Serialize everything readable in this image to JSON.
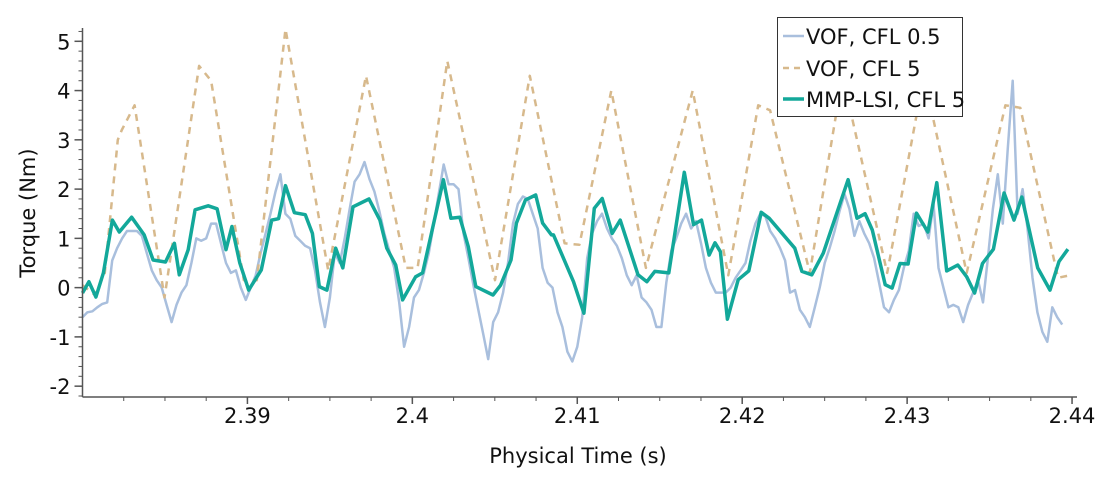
{
  "chart_data": {
    "type": "line",
    "title": "",
    "xlabel": "Physical Time (s)",
    "ylabel": "Torque (Nm)",
    "xlim": [
      2.38,
      2.4403
    ],
    "ylim": [
      -2.22,
      5.27
    ],
    "xticks": [
      2.39,
      2.4,
      2.41,
      2.42,
      2.43,
      2.44
    ],
    "xtick_labels": [
      "2.39",
      "2.4",
      "2.41",
      "2.42",
      "2.43",
      "2.44"
    ],
    "yticks": [
      5,
      4,
      3,
      2,
      1,
      0,
      -1,
      -2
    ],
    "ytick_labels": [
      "5",
      "4",
      "3",
      "2",
      "1",
      "0",
      "-1",
      "-2"
    ],
    "grid": false,
    "legend_position": "top-right",
    "series": [
      {
        "name": "VOF, CFL 0.5",
        "color": "#a9bfdd",
        "style": "solid",
        "x": [
          2.38,
          2.3803,
          2.3806,
          2.3809,
          2.3812,
          2.3815,
          2.3818,
          2.3821,
          2.3824,
          2.3827,
          2.383,
          2.3833,
          2.3836,
          2.3839,
          2.3842,
          2.3845,
          2.3848,
          2.3851,
          2.3854,
          2.3857,
          2.386,
          2.3863,
          2.3866,
          2.3869,
          2.3872,
          2.3875,
          2.3878,
          2.3881,
          2.3884,
          2.3887,
          2.389,
          2.3893,
          2.3896,
          2.3899,
          2.3902,
          2.3905,
          2.3908,
          2.3911,
          2.3914,
          2.3917,
          2.392,
          2.3923,
          2.3926,
          2.3929,
          2.3932,
          2.3935,
          2.3938,
          2.3941,
          2.3944,
          2.3947,
          2.395,
          2.3953,
          2.3956,
          2.3959,
          2.3962,
          2.3965,
          2.3968,
          2.3971,
          2.3974,
          2.3977,
          2.398,
          2.3983,
          2.3986,
          2.3989,
          2.3992,
          2.3995,
          2.3998,
          2.4001,
          2.4004,
          2.4007,
          2.401,
          2.4013,
          2.4016,
          2.4019,
          2.4022,
          2.4025,
          2.4028,
          2.4031,
          2.4034,
          2.4037,
          2.404,
          2.4043,
          2.4046,
          2.4049,
          2.4052,
          2.4055,
          2.4058,
          2.4061,
          2.4064,
          2.4067,
          2.407,
          2.4073,
          2.4076,
          2.4079,
          2.4082,
          2.4085,
          2.4088,
          2.4091,
          2.4094,
          2.4097,
          2.41,
          2.4103,
          2.4106,
          2.4109,
          2.4112,
          2.4115,
          2.4118,
          2.4121,
          2.4124,
          2.4127,
          2.413,
          2.4133,
          2.4136,
          2.4139,
          2.4142,
          2.4145,
          2.4148,
          2.4151,
          2.4154,
          2.4157,
          2.416,
          2.4163,
          2.4166,
          2.4169,
          2.4172,
          2.4175,
          2.4178,
          2.4181,
          2.4184,
          2.4187,
          2.419,
          2.4193,
          2.4196,
          2.4199,
          2.4202,
          2.4205,
          2.4208,
          2.4211,
          2.4214,
          2.4217,
          2.422,
          2.4223,
          2.4226,
          2.4229,
          2.4232,
          2.4235,
          2.4238,
          2.4241,
          2.4244,
          2.4247,
          2.425,
          2.4253,
          2.4256,
          2.4259,
          2.4262,
          2.4265,
          2.4268,
          2.4271,
          2.4274,
          2.4277,
          2.428,
          2.4283,
          2.4286,
          2.4289,
          2.4292,
          2.4295,
          2.4298,
          2.4301,
          2.4304,
          2.4307,
          2.431,
          2.4313,
          2.4316,
          2.4319,
          2.4322,
          2.4325,
          2.4328,
          2.4331,
          2.4334,
          2.4337,
          2.434,
          2.4343,
          2.4346,
          2.4349,
          2.4352,
          2.4355,
          2.4358,
          2.4361,
          2.4364,
          2.4367,
          2.437,
          2.4373,
          2.4376,
          2.4379,
          2.4382,
          2.4385,
          2.4388,
          2.4391,
          2.4394
        ],
        "y": [
          -0.6,
          -0.5,
          -0.48,
          -0.4,
          -0.33,
          -0.3,
          0.55,
          0.8,
          1.0,
          1.15,
          1.15,
          1.15,
          1.05,
          0.7,
          0.35,
          0.15,
          0.0,
          -0.35,
          -0.7,
          -0.35,
          -0.1,
          0.05,
          0.5,
          1.0,
          0.95,
          1.0,
          1.3,
          1.3,
          0.9,
          0.5,
          0.3,
          0.35,
          0.0,
          -0.25,
          0.0,
          0.25,
          0.7,
          1.1,
          1.5,
          1.95,
          2.3,
          1.5,
          1.4,
          1.05,
          0.95,
          0.85,
          0.8,
          0.35,
          -0.3,
          -0.8,
          -0.2,
          0.7,
          0.5,
          1.0,
          1.6,
          2.15,
          2.3,
          2.55,
          2.2,
          1.95,
          1.55,
          1.1,
          0.75,
          0.4,
          -0.3,
          -1.2,
          -0.8,
          -0.2,
          -0.05,
          0.3,
          0.7,
          1.3,
          1.9,
          2.5,
          2.1,
          2.1,
          2.0,
          1.1,
          0.6,
          0.05,
          -0.45,
          -0.95,
          -1.45,
          -0.7,
          -0.5,
          -0.1,
          0.5,
          1.3,
          1.7,
          1.85,
          1.8,
          1.5,
          1.2,
          0.4,
          0.1,
          0.0,
          -0.5,
          -0.8,
          -1.3,
          -1.5,
          -1.2,
          -0.6,
          0.6,
          1.1,
          1.35,
          1.5,
          1.2,
          1.0,
          0.85,
          0.6,
          0.25,
          0.05,
          0.25,
          -0.2,
          -0.3,
          -0.45,
          -0.8,
          -0.8,
          0.1,
          0.75,
          1.0,
          1.3,
          1.5,
          1.2,
          1.35,
          0.9,
          0.4,
          0.1,
          -0.1,
          -0.1,
          -0.1,
          0.0,
          0.2,
          0.35,
          0.5,
          0.95,
          1.3,
          1.5,
          1.45,
          1.15,
          1.0,
          0.8,
          0.55,
          -0.1,
          -0.05,
          -0.45,
          -0.6,
          -0.8,
          -0.4,
          0.0,
          0.5,
          0.8,
          1.15,
          1.55,
          1.9,
          1.6,
          1.05,
          1.35,
          1.1,
          0.9,
          0.6,
          0.1,
          -0.4,
          -0.5,
          -0.25,
          -0.05,
          0.4,
          0.75,
          1.5,
          1.25,
          1.3,
          1.0,
          1.7,
          0.4,
          0.0,
          -0.4,
          -0.35,
          -0.4,
          -0.7,
          -0.35,
          -0.1,
          0.15,
          -0.3,
          0.6,
          1.6,
          2.3,
          1.3,
          2.8,
          4.2,
          1.5,
          2.0,
          1.2,
          0.2,
          -0.5,
          -0.9,
          -1.1,
          -0.4,
          -0.6,
          -0.75
        ]
      },
      {
        "name": "VOF, CFL 5",
        "color": "#d7b98c",
        "style": "dashed",
        "x": [
          2.38,
          2.38075,
          2.38135,
          2.38214,
          2.38238,
          2.38316,
          2.38497,
          2.38707,
          2.3878,
          2.38978,
          2.39057,
          2.39231,
          2.3949,
          2.39719,
          2.3996,
          2.40032,
          2.40212,
          2.40501,
          2.40712,
          2.40923,
          2.41013,
          2.41206,
          2.41416,
          2.417,
          2.41916,
          2.42097,
          2.42169,
          2.4241,
          2.42608,
          2.42879,
          2.43102,
          2.43361,
          2.43596,
          2.43686,
          2.43915,
          2.43987
        ],
        "y": [
          0.05,
          -0.15,
          0.3,
          3.0,
          3.2,
          3.7,
          -0.2,
          4.5,
          4.2,
          0.15,
          0.15,
          5.25,
          0.35,
          4.3,
          0.4,
          0.4,
          4.6,
          0.15,
          4.3,
          0.9,
          0.87,
          4.0,
          0.4,
          4.0,
          0.25,
          3.7,
          3.6,
          0.3,
          4.3,
          0.3,
          4.3,
          0.3,
          3.7,
          3.65,
          0.2,
          0.25
        ]
      },
      {
        "name": "MMP-LSI, CFL 5",
        "color": "#13a89a",
        "style": "solid",
        "x": [
          2.38,
          2.38039,
          2.38081,
          2.38127,
          2.38181,
          2.38223,
          2.38298,
          2.38374,
          2.38428,
          2.38503,
          2.38557,
          2.38587,
          2.38641,
          2.38683,
          2.38762,
          2.38816,
          2.3887,
          2.38906,
          2.38954,
          2.39008,
          2.39084,
          2.39147,
          2.39189,
          2.39231,
          2.39285,
          2.39351,
          2.39394,
          2.39436,
          2.39482,
          2.39535,
          2.39578,
          2.3964,
          2.39737,
          2.39803,
          2.39845,
          2.39899,
          2.39941,
          2.4002,
          2.40062,
          2.40188,
          2.40234,
          2.40288,
          2.40339,
          2.40385,
          2.40489,
          2.40535,
          2.40598,
          2.40631,
          2.40686,
          2.40748,
          2.4079,
          2.40844,
          2.40856,
          2.40977,
          2.4104,
          2.41103,
          2.41151,
          2.41212,
          2.4126,
          2.41368,
          2.41422,
          2.4147,
          2.41555,
          2.41649,
          2.41705,
          2.41753,
          2.41799,
          2.41835,
          2.41868,
          2.4191,
          2.41976,
          2.4204,
          2.42115,
          2.42163,
          2.42319,
          2.42362,
          2.42422,
          2.42492,
          2.42642,
          2.42696,
          2.42745,
          2.42789,
          2.42867,
          2.42909,
          2.42957,
          2.43006,
          2.43057,
          2.43126,
          2.4318,
          2.4324,
          2.43307,
          2.43361,
          2.43409,
          2.43457,
          2.43523,
          2.43588,
          2.43648,
          2.43696,
          2.43792,
          2.43866,
          2.43921,
          2.43975
        ],
        "y": [
          -0.11,
          0.12,
          -0.19,
          0.3,
          1.37,
          1.13,
          1.43,
          1.07,
          0.56,
          0.52,
          0.9,
          0.26,
          0.77,
          1.58,
          1.66,
          1.6,
          0.77,
          1.24,
          0.5,
          -0.05,
          0.36,
          1.37,
          1.4,
          2.07,
          1.52,
          1.48,
          1.1,
          0.02,
          -0.05,
          0.8,
          0.4,
          1.64,
          1.8,
          1.37,
          0.8,
          0.46,
          -0.25,
          0.22,
          0.3,
          2.19,
          1.41,
          1.43,
          0.83,
          0.02,
          -0.15,
          0.05,
          0.56,
          1.31,
          1.78,
          1.88,
          1.31,
          1.07,
          1.07,
          0.12,
          -0.52,
          1.61,
          1.81,
          1.1,
          1.37,
          0.26,
          0.12,
          0.33,
          0.3,
          2.34,
          1.28,
          1.37,
          0.66,
          0.91,
          0.73,
          -0.64,
          0.16,
          0.34,
          1.53,
          1.41,
          0.8,
          0.33,
          0.26,
          0.7,
          2.19,
          1.41,
          1.5,
          1.17,
          0.06,
          -0.01,
          0.49,
          0.48,
          1.51,
          1.13,
          2.13,
          0.34,
          0.46,
          0.22,
          -0.11,
          0.49,
          0.78,
          1.92,
          1.37,
          1.84,
          0.4,
          -0.05,
          0.53,
          0.78
        ]
      }
    ]
  }
}
